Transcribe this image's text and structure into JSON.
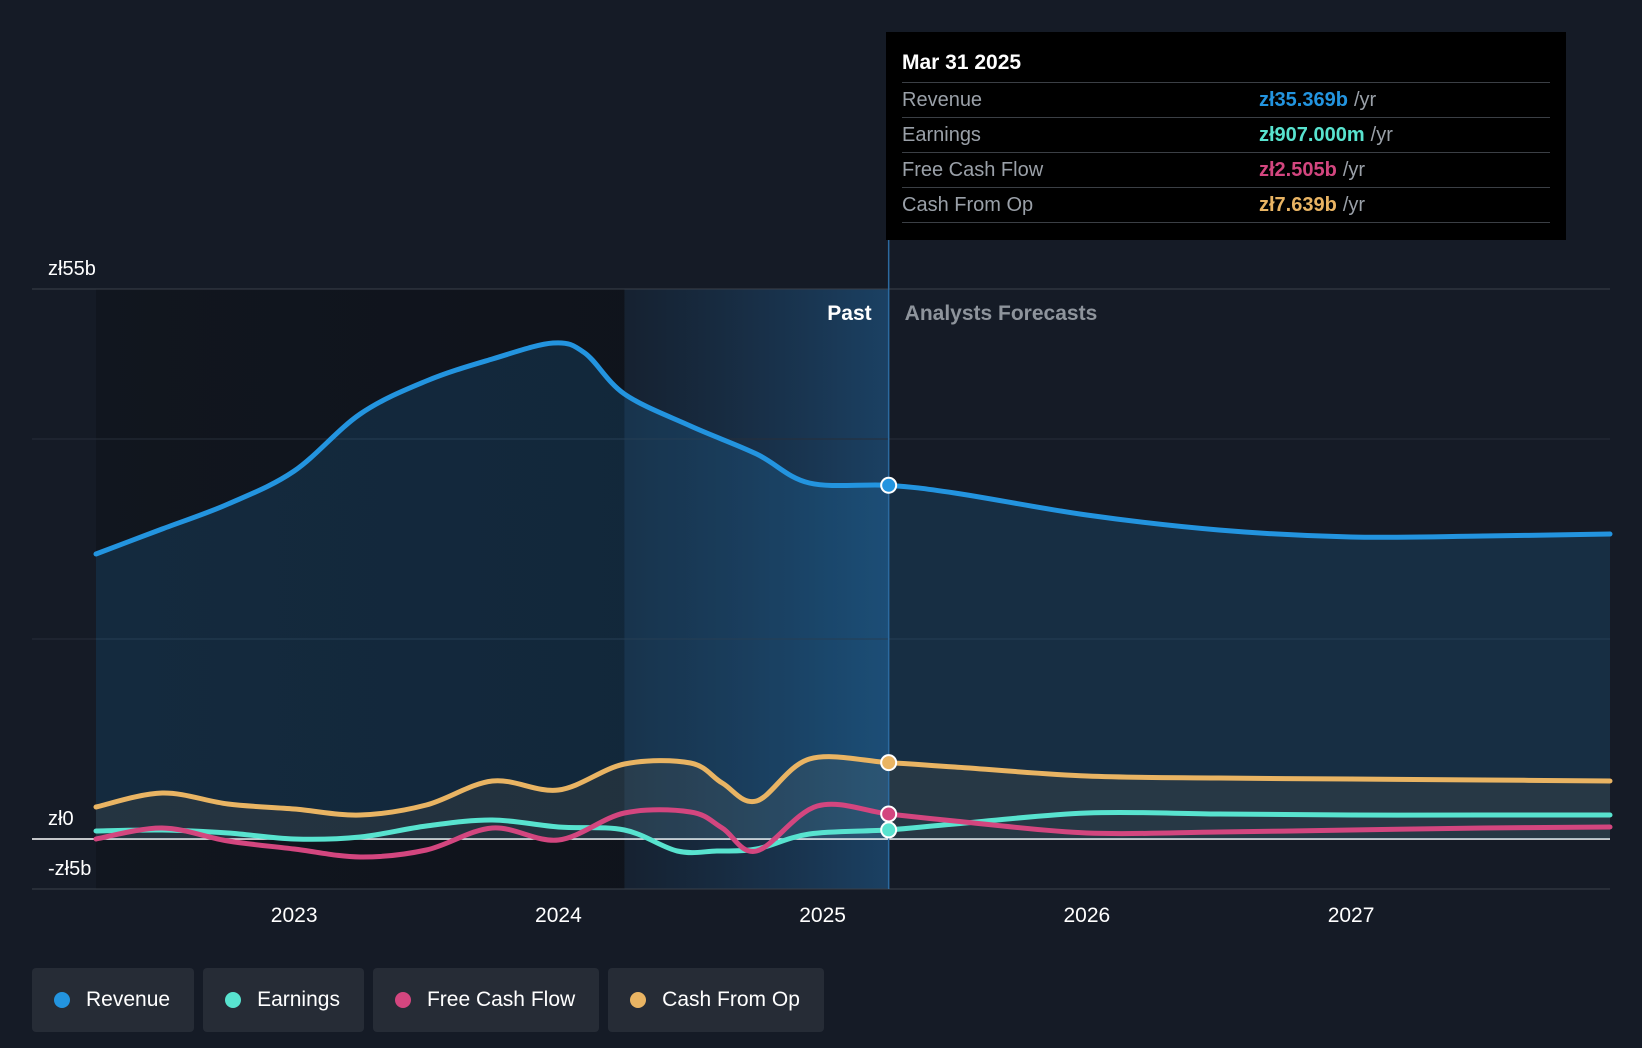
{
  "chart_data": {
    "type": "line",
    "title": "",
    "currency_unit": "zł",
    "y_axis": {
      "ylim": [
        -5,
        55
      ],
      "labels": [
        {
          "value": 55,
          "text": "zł55b"
        },
        {
          "value": 0,
          "text": "zł0"
        },
        {
          "value": -5,
          "text": "-zł5b"
        }
      ],
      "gridlines": [
        55,
        40,
        20,
        0,
        -5
      ]
    },
    "x_axis": {
      "xlim": [
        2022.25,
        2027.98
      ],
      "ticks": [
        {
          "value": 2023,
          "label": "2023"
        },
        {
          "value": 2024,
          "label": "2024"
        },
        {
          "value": 2025,
          "label": "2025"
        },
        {
          "value": 2026,
          "label": "2026"
        },
        {
          "value": 2027,
          "label": "2027"
        }
      ]
    },
    "regions": {
      "past_label": "Past",
      "forecast_label": "Analysts Forecasts",
      "highlight_start": 2024.25,
      "divider": 2025.25
    },
    "series": [
      {
        "name": "Revenue",
        "color": "#2394df",
        "fill": true,
        "points": [
          [
            2022.25,
            28.5
          ],
          [
            2022.5,
            31.0
          ],
          [
            2022.75,
            33.5
          ],
          [
            2023.0,
            36.8
          ],
          [
            2023.25,
            42.5
          ],
          [
            2023.5,
            45.8
          ],
          [
            2023.75,
            48.0
          ],
          [
            2023.98,
            49.6
          ],
          [
            2024.1,
            48.6
          ],
          [
            2024.25,
            44.5
          ],
          [
            2024.5,
            41.3
          ],
          [
            2024.75,
            38.5
          ],
          [
            2024.95,
            35.6
          ],
          [
            2025.25,
            35.37
          ],
          [
            2025.5,
            34.6
          ],
          [
            2026.0,
            32.4
          ],
          [
            2026.5,
            30.9
          ],
          [
            2027.0,
            30.2
          ],
          [
            2027.5,
            30.3
          ],
          [
            2027.98,
            30.5
          ]
        ]
      },
      {
        "name": "Earnings",
        "color": "#58e3cf",
        "fill": false,
        "points": [
          [
            2022.25,
            0.8
          ],
          [
            2022.5,
            0.9
          ],
          [
            2022.75,
            0.6
          ],
          [
            2023.0,
            0.0
          ],
          [
            2023.25,
            0.2
          ],
          [
            2023.5,
            1.3
          ],
          [
            2023.75,
            1.9
          ],
          [
            2024.0,
            1.2
          ],
          [
            2024.25,
            0.9
          ],
          [
            2024.45,
            -1.2
          ],
          [
            2024.6,
            -1.2
          ],
          [
            2024.75,
            -1.0
          ],
          [
            2024.95,
            0.5
          ],
          [
            2025.25,
            0.907
          ],
          [
            2025.5,
            1.5
          ],
          [
            2026.0,
            2.6
          ],
          [
            2026.5,
            2.5
          ],
          [
            2027.0,
            2.4
          ],
          [
            2027.5,
            2.4
          ],
          [
            2027.98,
            2.4
          ]
        ]
      },
      {
        "name": "Free Cash Flow",
        "color": "#d3467f",
        "fill": false,
        "points": [
          [
            2022.25,
            0.0
          ],
          [
            2022.5,
            1.1
          ],
          [
            2022.75,
            -0.2
          ],
          [
            2023.0,
            -1.0
          ],
          [
            2023.25,
            -1.8
          ],
          [
            2023.5,
            -1.1
          ],
          [
            2023.75,
            1.1
          ],
          [
            2024.0,
            -0.1
          ],
          [
            2024.25,
            2.6
          ],
          [
            2024.5,
            2.7
          ],
          [
            2024.62,
            1.1
          ],
          [
            2024.75,
            -1.2
          ],
          [
            2024.98,
            3.3
          ],
          [
            2025.25,
            2.505
          ],
          [
            2025.5,
            1.8
          ],
          [
            2026.0,
            0.6
          ],
          [
            2026.5,
            0.7
          ],
          [
            2027.0,
            0.9
          ],
          [
            2027.5,
            1.1
          ],
          [
            2027.98,
            1.2
          ]
        ]
      },
      {
        "name": "Cash From Op",
        "color": "#e9b463",
        "fill": true,
        "points": [
          [
            2022.25,
            3.2
          ],
          [
            2022.5,
            4.6
          ],
          [
            2022.75,
            3.5
          ],
          [
            2023.0,
            3.0
          ],
          [
            2023.25,
            2.4
          ],
          [
            2023.5,
            3.4
          ],
          [
            2023.75,
            5.8
          ],
          [
            2024.0,
            4.9
          ],
          [
            2024.25,
            7.5
          ],
          [
            2024.5,
            7.6
          ],
          [
            2024.62,
            5.6
          ],
          [
            2024.75,
            3.8
          ],
          [
            2024.95,
            8.0
          ],
          [
            2025.25,
            7.639
          ],
          [
            2025.5,
            7.2
          ],
          [
            2026.0,
            6.3
          ],
          [
            2026.5,
            6.1
          ],
          [
            2027.0,
            6.0
          ],
          [
            2027.5,
            5.9
          ],
          [
            2027.98,
            5.8
          ]
        ]
      }
    ],
    "highlight_x": 2025.25
  },
  "tooltip": {
    "date": "Mar 31 2025",
    "rows": [
      {
        "label": "Revenue",
        "value": "zł35.369b",
        "unit": "/yr",
        "color": "#2394df"
      },
      {
        "label": "Earnings",
        "value": "zł907.000m",
        "unit": "/yr",
        "color": "#58e3cf"
      },
      {
        "label": "Free Cash Flow",
        "value": "zł2.505b",
        "unit": "/yr",
        "color": "#d3467f"
      },
      {
        "label": "Cash From Op",
        "value": "zł7.639b",
        "unit": "/yr",
        "color": "#e9b463"
      }
    ]
  },
  "legend": {
    "items": [
      {
        "label": "Revenue",
        "color": "#2394df"
      },
      {
        "label": "Earnings",
        "color": "#58e3cf"
      },
      {
        "label": "Free Cash Flow",
        "color": "#d3467f"
      },
      {
        "label": "Cash From Op",
        "color": "#e9b463"
      }
    ]
  }
}
